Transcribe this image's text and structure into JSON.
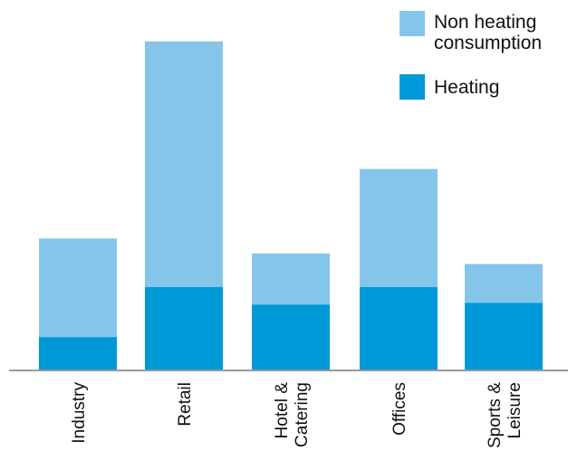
{
  "chart_data": {
    "type": "bar",
    "stacked": true,
    "categories": [
      [
        "Industry"
      ],
      [
        "Retail"
      ],
      [
        "Hotel &",
        "Catering"
      ],
      [
        "Offices"
      ],
      [
        "Sports &",
        "Leisure"
      ]
    ],
    "series": [
      {
        "name": "Heating",
        "color": "#0099d8",
        "values": [
          38,
          95,
          75,
          95,
          77
        ]
      },
      {
        "name": "Non heating consumption",
        "color": "#86c5ea",
        "values": [
          112,
          279,
          58,
          134,
          44
        ]
      }
    ],
    "legend": {
      "placement": "top-right",
      "entries": [
        {
          "lines": [
            "Non heating",
            "consumption"
          ],
          "color": "#86c5ea"
        },
        {
          "lines": [
            "Heating"
          ],
          "color": "#0099d8"
        }
      ]
    },
    "ylim": [
      0,
      385
    ],
    "title": "",
    "xlabel": "",
    "ylabel": "",
    "grid": false
  }
}
